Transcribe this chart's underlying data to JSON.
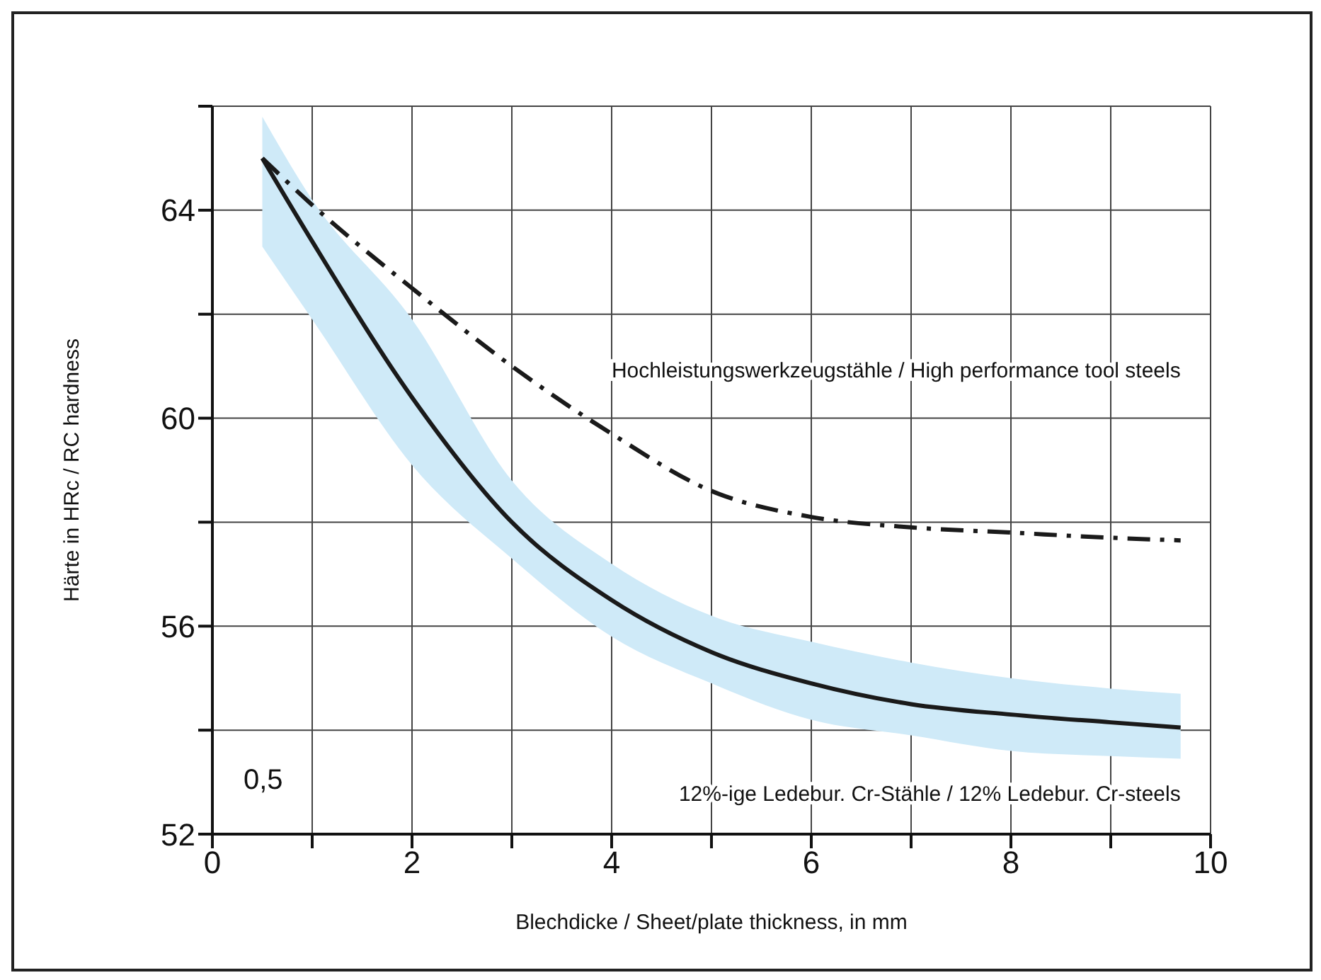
{
  "chart_data": {
    "type": "line",
    "xlabel": "Blechdicke / Sheet/plate thickness, in mm",
    "ylabel": "Härte in HRc / RC hardness",
    "xlim": [
      0,
      10
    ],
    "xticks": [
      0,
      {
        "value": 1,
        "label": null
      },
      2,
      {
        "value": 3,
        "label": null
      },
      4,
      {
        "value": 5,
        "label": null
      },
      6,
      {
        "value": 7,
        "label": null
      },
      8,
      {
        "value": 9,
        "label": null
      },
      10
    ],
    "ylim": [
      52,
      66
    ],
    "yticks": [
      52,
      {
        "value": 54,
        "label": null
      },
      56,
      {
        "value": 58,
        "label": null
      },
      60,
      {
        "value": 62,
        "label": null
      },
      64,
      {
        "value": 66,
        "label": null
      }
    ],
    "grid": true,
    "series": [
      {
        "name": "Hochleistungswerkzeugstähle / High performance tool steels",
        "color": "#1a1a1a",
        "line_style": "dashed",
        "x": [
          0.5,
          1,
          2,
          3,
          4,
          5,
          6,
          7,
          8,
          9,
          9.7
        ],
        "values": [
          65,
          64.1,
          62.5,
          61.0,
          59.7,
          58.6,
          58.1,
          57.9,
          57.8,
          57.7,
          57.65
        ]
      },
      {
        "name": "12%-ige Ledebur. Cr-Stähle / 12% Ledebur. Cr-steels",
        "color": "#1a1a1a",
        "line_style": "solid",
        "x": [
          0.5,
          1,
          2,
          3,
          4,
          5,
          6,
          7,
          8,
          9,
          9.7
        ],
        "values": [
          65,
          63.4,
          60.4,
          58.0,
          56.5,
          55.5,
          54.9,
          54.5,
          54.3,
          54.15,
          54.05
        ],
        "lower": [
          63.3,
          61.9,
          59.1,
          57.3,
          55.8,
          54.9,
          54.2,
          53.9,
          53.6,
          53.5,
          53.45
        ],
        "upper": [
          65.8,
          64.2,
          61.9,
          58.8,
          57.2,
          56.2,
          55.7,
          55.3,
          55.0,
          54.8,
          54.7
        ]
      }
    ],
    "annotations": [
      "0,5"
    ]
  }
}
